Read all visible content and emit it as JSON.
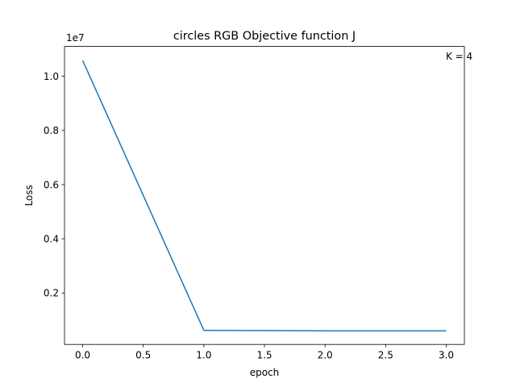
{
  "chart_data": {
    "type": "line",
    "title": "circles RGB Objective function J",
    "xlabel": "epoch",
    "ylabel": "Loss",
    "y_offset_label": "1e7",
    "annotation": "K = 4",
    "xlim": [
      -0.15,
      3.15
    ],
    "ylim": [
      100000,
      11100000
    ],
    "x_ticks": [
      {
        "value": 0.0,
        "label": "0.0"
      },
      {
        "value": 0.5,
        "label": "0.5"
      },
      {
        "value": 1.0,
        "label": "1.0"
      },
      {
        "value": 1.5,
        "label": "1.5"
      },
      {
        "value": 2.0,
        "label": "2.0"
      },
      {
        "value": 2.5,
        "label": "2.5"
      },
      {
        "value": 3.0,
        "label": "3.0"
      }
    ],
    "y_ticks": [
      {
        "value": 2000000,
        "label": "0.2"
      },
      {
        "value": 4000000,
        "label": "0.4"
      },
      {
        "value": 6000000,
        "label": "0.6"
      },
      {
        "value": 8000000,
        "label": "0.8"
      },
      {
        "value": 10000000,
        "label": "1.0"
      }
    ],
    "grid": false,
    "colors": {
      "line": "#1f77b4",
      "axes": "#000000"
    },
    "series": [
      {
        "x": [
          0,
          1,
          2,
          3
        ],
        "values": [
          10580000,
          620000,
          600000,
          600000
        ]
      }
    ]
  }
}
